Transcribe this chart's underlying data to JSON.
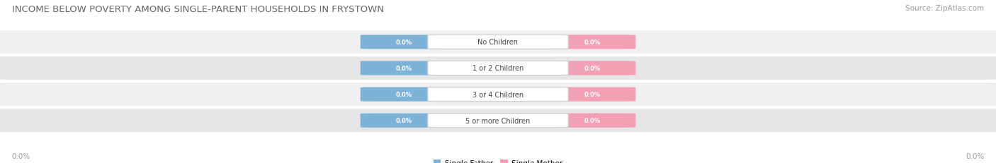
{
  "title": "INCOME BELOW POVERTY AMONG SINGLE-PARENT HOUSEHOLDS IN FRYSTOWN",
  "source": "Source: ZipAtlas.com",
  "categories": [
    "No Children",
    "1 or 2 Children",
    "3 or 4 Children",
    "5 or more Children"
  ],
  "single_father_values": [
    0.0,
    0.0,
    0.0,
    0.0
  ],
  "single_mother_values": [
    0.0,
    0.0,
    0.0,
    0.0
  ],
  "father_color": "#7eb3d8",
  "mother_color": "#f4a0b4",
  "row_bg_color_odd": "#f0f0f0",
  "row_bg_color_even": "#e6e6e6",
  "title_fontsize": 9.5,
  "source_fontsize": 7.5,
  "axis_label": "0.0%",
  "background_color": "#ffffff",
  "legend_father": "Single Father",
  "legend_mother": "Single Mother"
}
